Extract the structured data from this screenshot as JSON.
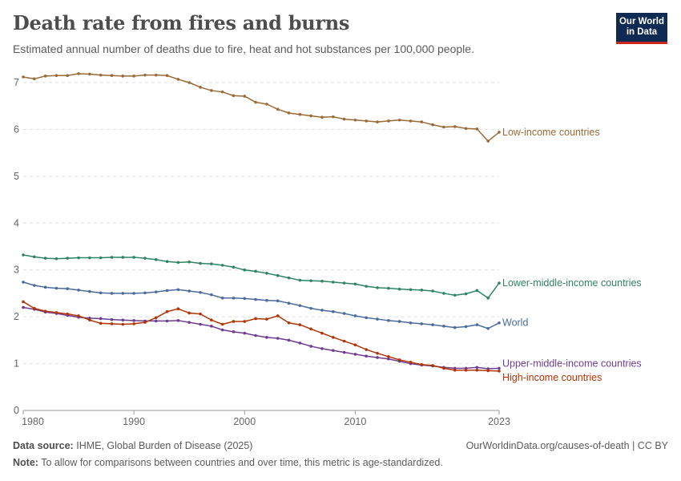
{
  "title": "Death rate from fires and burns",
  "subtitle": "Estimated annual number of deaths due to fire, heat and hot substances per 100,000 people.",
  "logo": {
    "line1": "Our World",
    "line2": "in Data"
  },
  "footer": {
    "source_label": "Data source:",
    "source_text": "IHME, Global Burden of Disease (2025)",
    "url": "OurWorldinData.org/causes-of-death | CC BY",
    "note_label": "Note:",
    "note_text": "To allow for comparisons between countries and over time, this metric is age-standardized."
  },
  "chart_data": {
    "type": "line",
    "x_ticks": [
      "1980",
      "1990",
      "2000",
      "2010",
      "2023"
    ],
    "y_ticks": [
      0,
      1,
      2,
      3,
      4,
      5,
      6,
      7
    ],
    "xlim": [
      1980,
      2023
    ],
    "ylim": [
      0,
      7.3
    ],
    "grid": "horizontal dashed",
    "legend": "labels at line ends",
    "x": [
      1980,
      1981,
      1982,
      1983,
      1984,
      1985,
      1986,
      1987,
      1988,
      1989,
      1990,
      1991,
      1992,
      1993,
      1994,
      1995,
      1996,
      1997,
      1998,
      1999,
      2000,
      2001,
      2002,
      2003,
      2004,
      2005,
      2006,
      2007,
      2008,
      2009,
      2010,
      2011,
      2012,
      2013,
      2014,
      2015,
      2016,
      2017,
      2018,
      2019,
      2020,
      2021,
      2022,
      2023
    ],
    "series": [
      {
        "name": "Low-income countries",
        "color": "#9a6a37",
        "values": [
          7.12,
          7.08,
          7.14,
          7.15,
          7.15,
          7.19,
          7.18,
          7.16,
          7.15,
          7.14,
          7.14,
          7.16,
          7.16,
          7.15,
          7.07,
          7.0,
          6.9,
          6.83,
          6.8,
          6.72,
          6.71,
          6.58,
          6.54,
          6.43,
          6.35,
          6.32,
          6.29,
          6.26,
          6.27,
          6.22,
          6.2,
          6.18,
          6.16,
          6.18,
          6.2,
          6.18,
          6.16,
          6.1,
          6.05,
          6.06,
          6.02,
          6.01,
          5.75,
          5.94
        ]
      },
      {
        "name": "Lower-middle-income countries",
        "color": "#2f8463",
        "values": [
          3.32,
          3.28,
          3.25,
          3.24,
          3.25,
          3.26,
          3.26,
          3.26,
          3.27,
          3.27,
          3.27,
          3.25,
          3.22,
          3.18,
          3.16,
          3.17,
          3.14,
          3.13,
          3.1,
          3.06,
          3.0,
          2.97,
          2.93,
          2.88,
          2.83,
          2.78,
          2.77,
          2.76,
          2.74,
          2.72,
          2.7,
          2.65,
          2.62,
          2.61,
          2.59,
          2.58,
          2.57,
          2.55,
          2.5,
          2.46,
          2.49,
          2.56,
          2.4,
          2.72
        ]
      },
      {
        "name": "World",
        "color": "#4c6a9c",
        "values": [
          2.74,
          2.67,
          2.63,
          2.61,
          2.6,
          2.57,
          2.54,
          2.51,
          2.5,
          2.5,
          2.5,
          2.51,
          2.53,
          2.56,
          2.58,
          2.55,
          2.52,
          2.47,
          2.4,
          2.4,
          2.39,
          2.37,
          2.35,
          2.34,
          2.29,
          2.24,
          2.18,
          2.14,
          2.11,
          2.07,
          2.02,
          1.98,
          1.95,
          1.92,
          1.9,
          1.87,
          1.85,
          1.83,
          1.8,
          1.77,
          1.79,
          1.83,
          1.75,
          1.87
        ]
      },
      {
        "name": "Upper-middle-income countries",
        "color": "#6c3d91",
        "values": [
          2.2,
          2.16,
          2.1,
          2.07,
          2.03,
          1.99,
          1.97,
          1.96,
          1.94,
          1.93,
          1.92,
          1.91,
          1.91,
          1.91,
          1.92,
          1.88,
          1.84,
          1.8,
          1.72,
          1.68,
          1.65,
          1.6,
          1.56,
          1.54,
          1.5,
          1.44,
          1.37,
          1.32,
          1.28,
          1.24,
          1.2,
          1.16,
          1.13,
          1.1,
          1.05,
          1.0,
          0.97,
          0.95,
          0.92,
          0.9,
          0.9,
          0.92,
          0.89,
          0.9
        ]
      },
      {
        "name": "High-income countries",
        "color": "#b13507",
        "values": [
          2.32,
          2.18,
          2.12,
          2.09,
          2.06,
          2.02,
          1.93,
          1.86,
          1.85,
          1.84,
          1.85,
          1.88,
          1.98,
          2.11,
          2.17,
          2.08,
          2.06,
          1.93,
          1.84,
          1.9,
          1.9,
          1.96,
          1.95,
          2.02,
          1.87,
          1.83,
          1.74,
          1.65,
          1.56,
          1.48,
          1.4,
          1.3,
          1.22,
          1.15,
          1.08,
          1.03,
          0.98,
          0.96,
          0.9,
          0.86,
          0.86,
          0.86,
          0.85,
          0.84
        ]
      }
    ]
  }
}
